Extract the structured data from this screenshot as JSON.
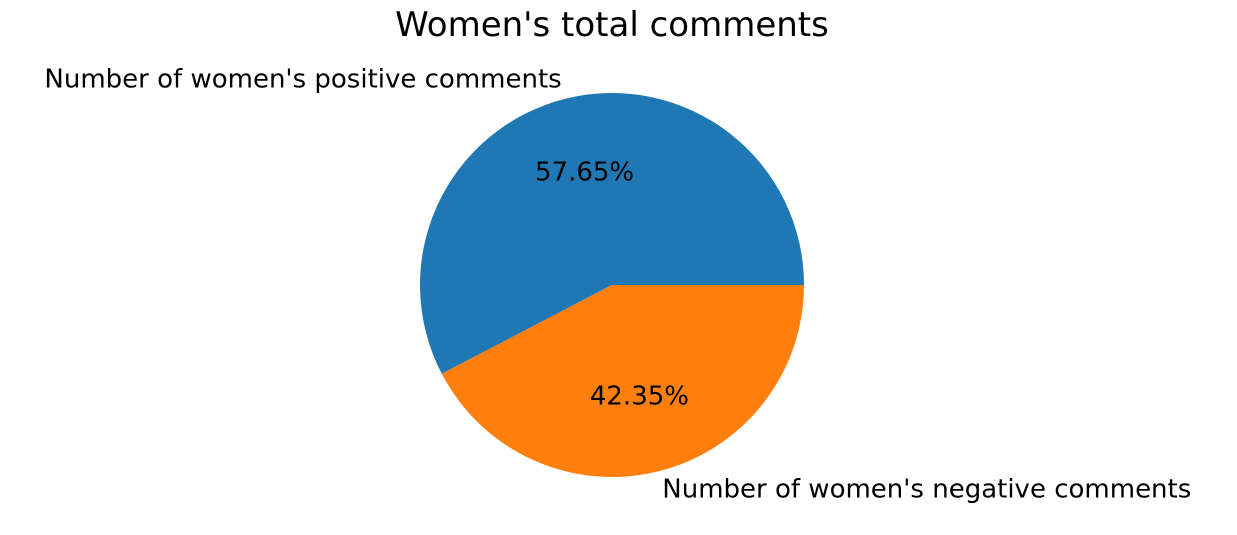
{
  "chart_data": {
    "type": "pie",
    "title": "Women's total comments",
    "slices": [
      {
        "label": "Number of women's positive comments",
        "value": 57.65,
        "pct_label": "57.65%",
        "color": "#1f77b4"
      },
      {
        "label": "Number of women's negative comments",
        "value": 42.35,
        "pct_label": "42.35%",
        "color": "#ff7f0e"
      }
    ],
    "start_angle": "0° (3 o'clock), counter-clockwise",
    "legend": "none"
  }
}
